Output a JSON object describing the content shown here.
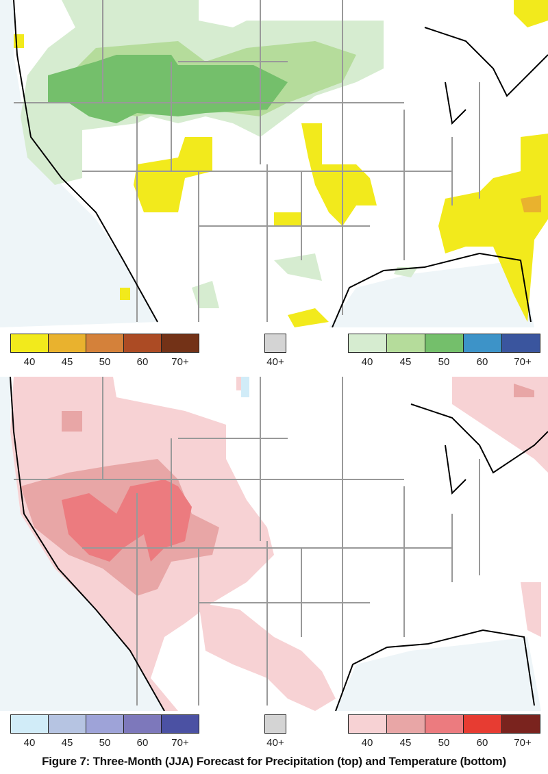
{
  "precipitation_map": {
    "below_colors": [
      "#f2ea1c",
      "#e9b22e",
      "#d4813a",
      "#ac4b24",
      "#733217"
    ],
    "equal_chances_color": "#d4d4d4",
    "above_colors": [
      "#d6ecd0",
      "#b5dc9b",
      "#74bf6b",
      "#3d93c8",
      "#3a559e"
    ],
    "below_labels": [
      "40",
      "45",
      "50",
      "60",
      "70+"
    ],
    "equal_chances_label": "40+",
    "above_labels": [
      "40",
      "45",
      "50",
      "60",
      "70+"
    ]
  },
  "temperature_map": {
    "below_colors": [
      "#d1ecf8",
      "#b6c4e2",
      "#9ea3d8",
      "#7d78bb",
      "#4b51a3"
    ],
    "equal_chances_color": "#d4d4d4",
    "above_colors": [
      "#f7d2d4",
      "#e8a6a6",
      "#ec7b7f",
      "#e73c32",
      "#7a231e"
    ],
    "below_labels": [
      "40",
      "45",
      "50",
      "60",
      "70+"
    ],
    "equal_chances_label": "40+",
    "above_labels": [
      "40",
      "45",
      "50",
      "60",
      "70+"
    ]
  },
  "caption": "Figure 7: Three-Month (JJA) Forecast for Precipitation (top) and Temperature (bottom)"
}
